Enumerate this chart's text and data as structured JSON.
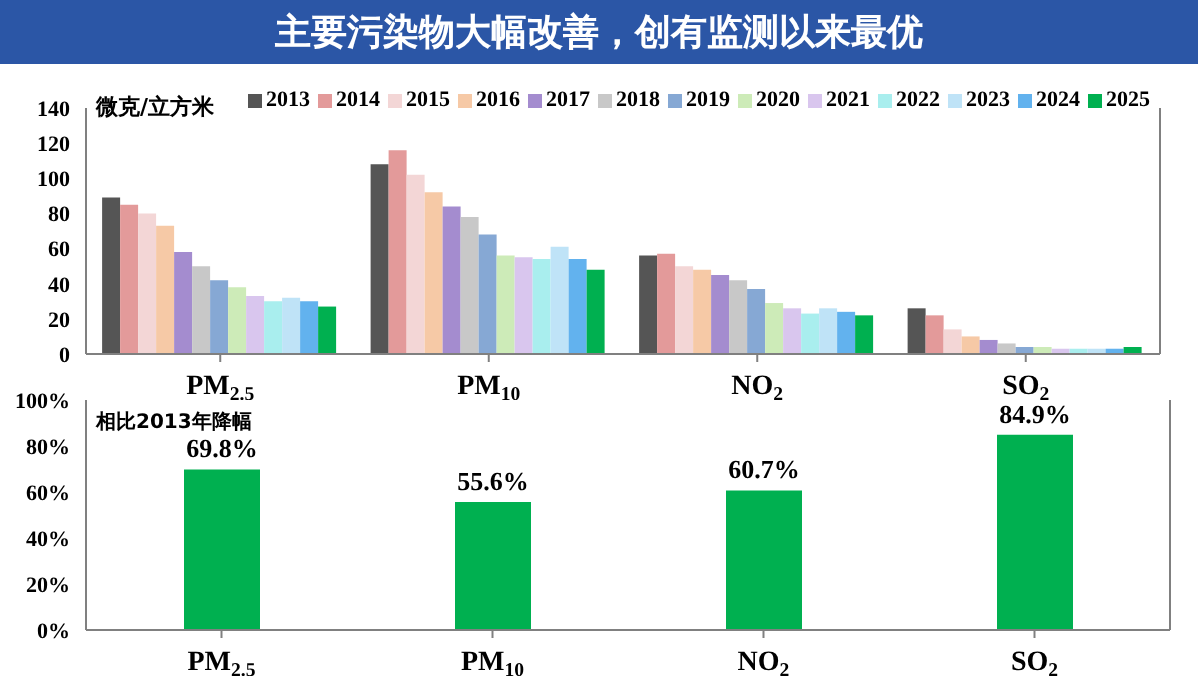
{
  "chart_data": [
    {
      "type": "bar",
      "title": "主要污染物大幅改善，创有监测以来最优",
      "ylabel": "微克/立方米",
      "categories": [
        "PM$_{2.5}$",
        "PM$_{10}$",
        "NO$_{2}$",
        "SO$_{2}$"
      ],
      "legend": "top right",
      "ylim": [
        0,
        140
      ],
      "yticks": [
        0,
        20,
        40,
        60,
        80,
        100,
        120,
        140
      ],
      "series": [
        {
          "name": "2013",
          "color": "#555555",
          "values": [
            89,
            108,
            56,
            26
          ]
        },
        {
          "name": "2014",
          "color": "#e39a9a",
          "values": [
            85,
            116,
            57,
            22
          ]
        },
        {
          "name": "2015",
          "color": "#f3d6d6",
          "values": [
            80,
            102,
            50,
            14
          ]
        },
        {
          "name": "2016",
          "color": "#f6c9a6",
          "values": [
            73,
            92,
            48,
            10
          ]
        },
        {
          "name": "2017",
          "color": "#a48ccf",
          "values": [
            58,
            84,
            45,
            8
          ]
        },
        {
          "name": "2018",
          "color": "#c8c8c8",
          "values": [
            50,
            78,
            42,
            6
          ]
        },
        {
          "name": "2019",
          "color": "#86a8d4",
          "values": [
            42,
            68,
            37,
            4
          ]
        },
        {
          "name": "2020",
          "color": "#cdebb8",
          "values": [
            38,
            56,
            29,
            4
          ]
        },
        {
          "name": "2021",
          "color": "#d9c6ee",
          "values": [
            33,
            55,
            26,
            3
          ]
        },
        {
          "name": "2022",
          "color": "#a9eeee",
          "values": [
            30,
            54,
            23,
            3
          ]
        },
        {
          "name": "2023",
          "color": "#bfe3f7",
          "values": [
            32,
            61,
            26,
            3
          ]
        },
        {
          "name": "2024",
          "color": "#62b2ee",
          "values": [
            30,
            54,
            24,
            3
          ]
        },
        {
          "name": "2025",
          "color": "#00b050",
          "values": [
            27,
            48,
            22,
            4
          ]
        }
      ]
    },
    {
      "type": "bar",
      "ylabel": "相比2013年降幅",
      "categories": [
        "PM$_{2.5}$",
        "PM$_{10}$",
        "NO$_{2}$",
        "SO$_{2}$"
      ],
      "values": [
        69.8,
        55.6,
        60.7,
        84.9
      ],
      "color": "#00b050",
      "value_labels": [
        "69.8%",
        "55.6%",
        "60.7%",
        "84.9%"
      ],
      "ylim": [
        0,
        100
      ],
      "yticks": [
        {
          "value": 0,
          "label": "0%"
        },
        {
          "value": 20,
          "label": "20%"
        },
        {
          "value": 40,
          "label": "40%"
        },
        {
          "value": 60,
          "label": "60%"
        },
        {
          "value": 80,
          "label": "80%"
        },
        {
          "value": 100,
          "label": "100%"
        }
      ]
    }
  ]
}
